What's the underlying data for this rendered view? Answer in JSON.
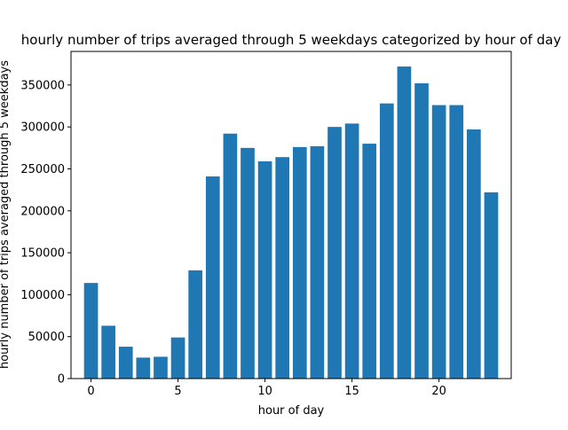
{
  "chart_data": {
    "type": "bar",
    "title": "hourly number of trips averaged through 5 weekdays categorized by hour of day",
    "xlabel": "hour of day",
    "ylabel": "hourly number of trips averaged through 5 weekdays",
    "x": [
      0,
      1,
      2,
      3,
      4,
      5,
      6,
      7,
      8,
      9,
      10,
      11,
      12,
      13,
      14,
      15,
      16,
      17,
      18,
      19,
      20,
      21,
      22,
      23
    ],
    "values": [
      114000,
      63000,
      38000,
      25000,
      26000,
      49000,
      129000,
      241000,
      292000,
      275000,
      259000,
      264000,
      276000,
      277000,
      300000,
      304000,
      280000,
      328000,
      372000,
      352000,
      326000,
      326000,
      297000,
      222000
    ],
    "xlim": [
      -1.15,
      24.15
    ],
    "ylim": [
      0,
      390000
    ],
    "xticks": [
      0,
      5,
      10,
      15,
      20
    ],
    "yticks": [
      0,
      50000,
      100000,
      150000,
      200000,
      250000,
      300000,
      350000
    ],
    "bar_color": "#1f77b4",
    "grid": false
  }
}
